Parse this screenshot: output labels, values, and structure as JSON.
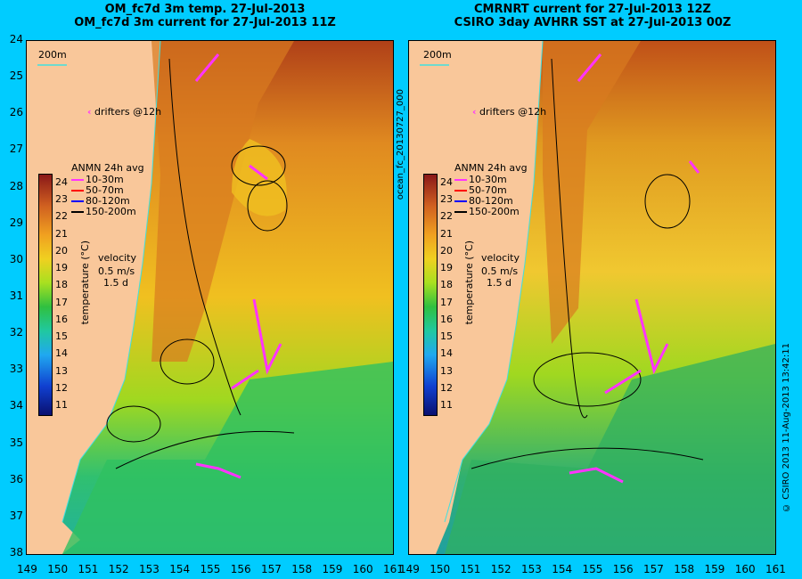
{
  "left": {
    "title1": "OM_fc7d 3m temp. 27-Jul-2013",
    "title2": "OM_fc7d 3m current for 27-Jul-2013 11Z",
    "scale_label": "200m",
    "drifters_label": "drifters @12h",
    "legend_title": "ANMN 24h avg",
    "legend_items": [
      "10-30m",
      "50-70m",
      "80-120m",
      "150-200m"
    ],
    "velocity_label": "velocity",
    "velocity_scale": "0.5 m/s",
    "velocity_time": "1.5 d",
    "cbar_label": "temperature (°C)"
  },
  "right": {
    "title1": "CMRNRT current for 27-Jul-2013 12Z",
    "title2": "CSIRO 3day AVHRR SST at 27-Jul-2013 00Z",
    "scale_label": "200m",
    "drifters_label": "drifters @12h",
    "legend_title": "ANMN 24h avg",
    "legend_items": [
      "10-30m",
      "50-70m",
      "80-120m",
      "150-200m"
    ],
    "velocity_label": "velocity",
    "velocity_scale": "0.5 m/s",
    "velocity_time": "1.5 d",
    "cbar_label": "temperature (°C)"
  },
  "side_label_left": "ocean_fc_20130727_000",
  "side_label_right": "© CSIRO 2013   11-Aug-2013 13:42:11",
  "y_ticks": [
    "24",
    "25",
    "26",
    "27",
    "28",
    "29",
    "30",
    "31",
    "32",
    "33",
    "34",
    "35",
    "36",
    "37",
    "38"
  ],
  "x_ticks_left": [
    "149",
    "150",
    "151",
    "152",
    "153",
    "154",
    "155",
    "156",
    "157",
    "158",
    "159",
    "160",
    "161"
  ],
  "x_ticks_right": [
    "149",
    "150",
    "151",
    "152",
    "153",
    "154",
    "155",
    "156",
    "157",
    "158",
    "159",
    "160",
    "161"
  ],
  "cbar_ticks": [
    "24",
    "23",
    "22",
    "21",
    "20",
    "19",
    "18",
    "17",
    "16",
    "15",
    "14",
    "13",
    "12",
    "11"
  ],
  "legend_colors": [
    "#ff33ff",
    "#ff0000",
    "#0000ff",
    "#000000"
  ]
}
